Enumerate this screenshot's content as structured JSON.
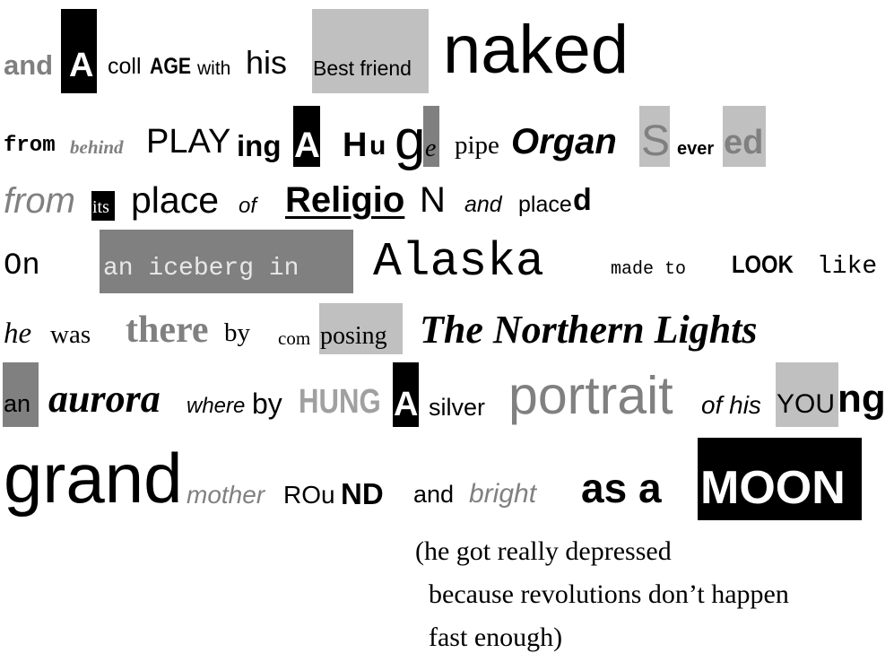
{
  "collage": {
    "line1": [
      "and",
      "A",
      "coll",
      "AGE",
      "with",
      "his",
      "Best friend",
      "naked"
    ],
    "line2": [
      "from",
      "behind",
      "PLAY",
      "ing",
      "A",
      "H",
      "u",
      "g",
      "e",
      "pipe",
      "Organ",
      "S",
      "ever",
      "ed"
    ],
    "line3": [
      "from",
      "its",
      "place",
      "of",
      "Religio",
      "N",
      "and",
      "place",
      "d"
    ],
    "line4": [
      "On",
      "an iceberg in",
      "Alaska",
      "made to",
      "LOOK",
      "like"
    ],
    "line5": [
      "he",
      "was",
      "there",
      "by",
      "com",
      "posing",
      "The Northern Lights"
    ],
    "line6": [
      "an",
      "aurora",
      "where",
      "by",
      "HUNG",
      "A",
      "silver",
      "portrait",
      "of his",
      "YOU",
      "ng"
    ],
    "line7": [
      "grand",
      "mother",
      "ROu",
      "ND",
      "and",
      "bright",
      "as a",
      "MOON"
    ],
    "footnote": [
      "(he got really depressed",
      "because revolutions don’t happen",
      "fast enough)"
    ]
  }
}
